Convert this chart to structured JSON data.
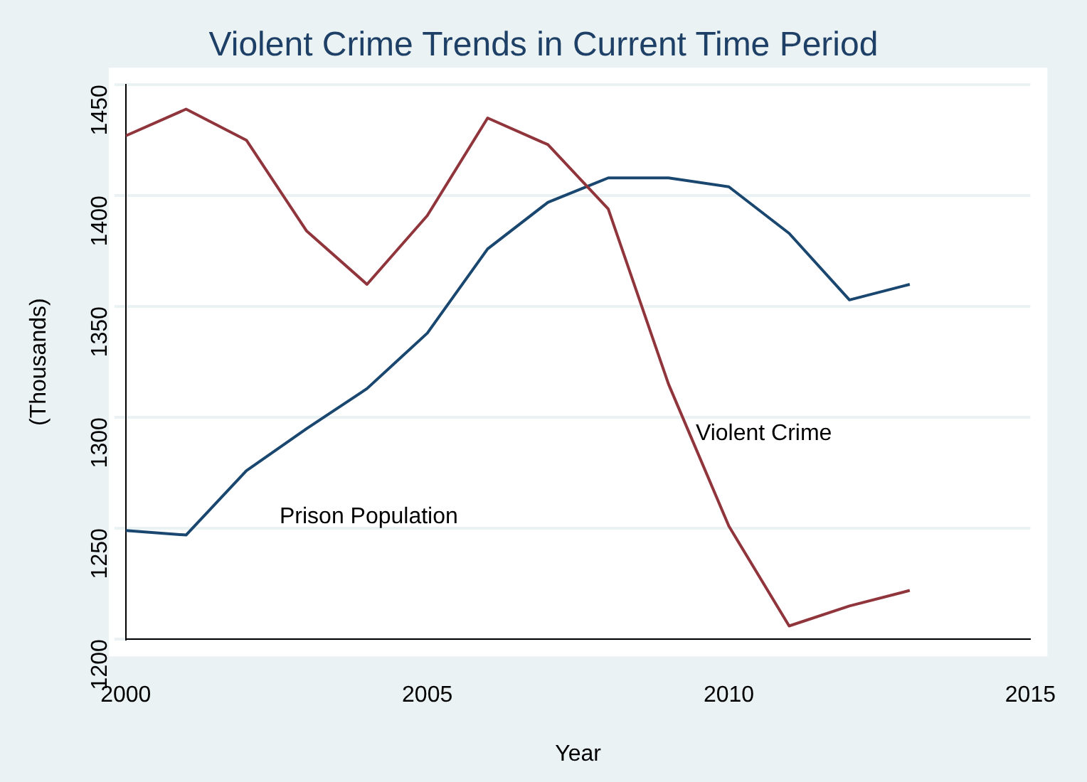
{
  "chart_data": {
    "type": "line",
    "title": "Violent Crime Trends in Current Time Period",
    "xlabel": "Year",
    "ylabel": "(Thousands)",
    "x": [
      2000,
      2001,
      2002,
      2003,
      2004,
      2005,
      2006,
      2007,
      2008,
      2009,
      2010,
      2011,
      2012,
      2013
    ],
    "series": [
      {
        "name": "Violent Crime",
        "color": "#90353b",
        "values": [
          1427,
          1439,
          1425,
          1384,
          1360,
          1391,
          1435,
          1423,
          1394,
          1315,
          1251,
          1206,
          1215,
          1222
        ]
      },
      {
        "name": "Prison Population",
        "color": "#1a476f",
        "values": [
          1249,
          1247,
          1276,
          1295,
          1313,
          1338,
          1376,
          1397,
          1408,
          1408,
          1404,
          1383,
          1353,
          1360
        ]
      }
    ],
    "xlim": [
      2000,
      2015
    ],
    "xticks": [
      2000,
      2005,
      2010,
      2015
    ],
    "ylim": [
      1200,
      1450
    ],
    "yticks": [
      1200,
      1250,
      1300,
      1350,
      1400,
      1450
    ],
    "grid": "y",
    "legend": false,
    "marker": "none",
    "line_style": "solid"
  }
}
